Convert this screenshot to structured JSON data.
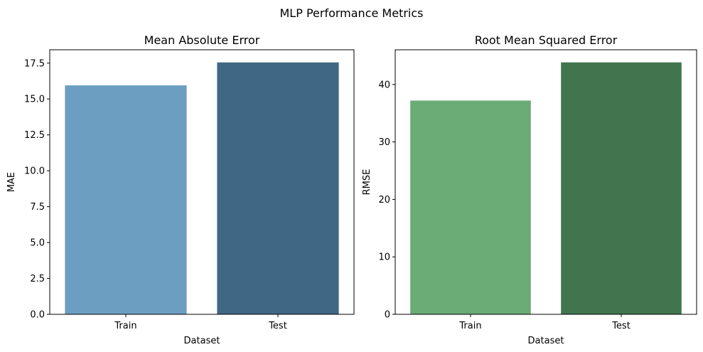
{
  "figure": {
    "suptitle": "MLP Performance Metrics"
  },
  "chart_data": [
    {
      "type": "bar",
      "title": "Mean Absolute Error",
      "xlabel": "Dataset",
      "ylabel": "MAE",
      "categories": [
        "Train",
        "Test"
      ],
      "values": [
        15.95,
        17.55
      ],
      "ylim": [
        0,
        18.43
      ],
      "yticks": [
        0.0,
        2.5,
        5.0,
        7.5,
        10.0,
        12.5,
        15.0,
        17.5
      ],
      "ytick_labels": [
        "0.0",
        "2.5",
        "5.0",
        "7.5",
        "10.0",
        "12.5",
        "15.0",
        "17.5"
      ],
      "colors": [
        "#6b9ec1",
        "#406885"
      ],
      "grid": false,
      "legend": "none"
    },
    {
      "type": "bar",
      "title": "Root Mean Squared Error",
      "xlabel": "Dataset",
      "ylabel": "RMSE",
      "categories": [
        "Train",
        "Test"
      ],
      "values": [
        37.2,
        43.85
      ],
      "ylim": [
        0,
        46.04
      ],
      "yticks": [
        0,
        10,
        20,
        30,
        40
      ],
      "ytick_labels": [
        "0",
        "10",
        "20",
        "30",
        "40"
      ],
      "colors": [
        "#6aab76",
        "#40754e"
      ],
      "grid": false,
      "legend": "none"
    }
  ]
}
